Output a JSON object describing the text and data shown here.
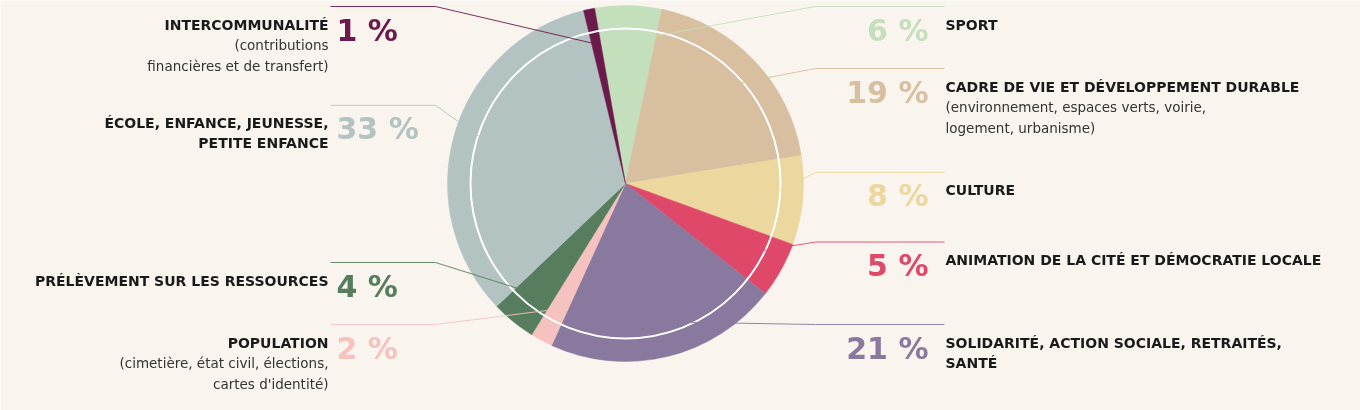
{
  "chart_data": {
    "type": "pie",
    "categories": [
      "SPORT",
      "CADRE DE VIE ET DÉVELOPPEMENT DURABLE\n(environnement, espaces verts, voirie,\nlogement, urbanisme)",
      "CULTURE",
      "ANIMATION DE LA CITÉ ET DÉMOCRATIE LOCALE",
      "SOLIDARITÉ, ACTION SOCIALE, RETRAITÉS,\nSANTÉ",
      "POPULATION\n(cimetière, état civil, élections,\ncartes d'identité)",
      "PRÉLÈVEMENT SUR LES RESSOURCES",
      "ÉCOLE, ENFANCE, JEUNESSE,\nPETITE ENFANCE",
      "INTERCOMMUNALITÉ\n(contributions\nfinancières et de transfert)"
    ],
    "values": [
      6,
      19,
      8,
      5,
      21,
      2,
      4,
      33,
      1
    ],
    "value_labels": [
      "6 %",
      "19 %",
      "8 %",
      "5 %",
      "21 %",
      "2 %",
      "4 %",
      "33 %",
      "1 %"
    ],
    "colors": [
      "#c3dfbc",
      "#d7bf9f",
      "#ecd79f",
      "#e0486a",
      "#8a799f",
      "#f5c2c0",
      "#567e5e",
      "#b3c3c1",
      "#6b1a4b"
    ]
  }
}
